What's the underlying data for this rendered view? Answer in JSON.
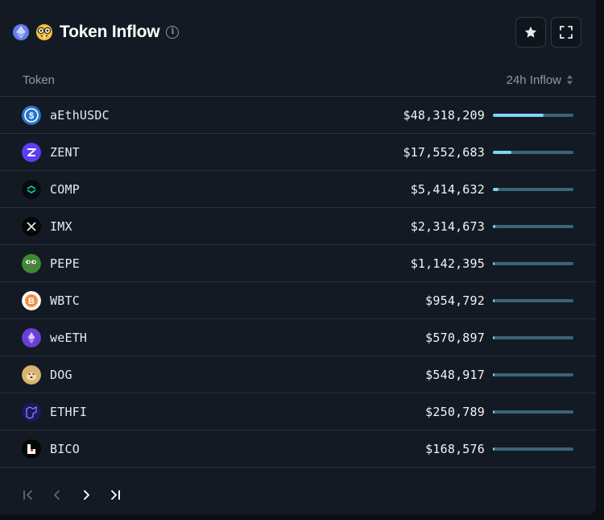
{
  "widget": {
    "title": "Token Inflow",
    "chain_icon": "ethereum-icon",
    "entity_icon": "nerd-face-emoji-icon",
    "actions": [
      "star-icon",
      "fullscreen-icon"
    ]
  },
  "columns": {
    "token": "Token",
    "inflow": "24h Inflow"
  },
  "colors": {
    "bar_track": "#3a6478",
    "bar_fill": "#7fd3f7",
    "background": "#131a23"
  },
  "rows": [
    {
      "name": "aEthUSDC",
      "value": "$48,318,209",
      "share": 0.63,
      "icon": "usdc-icon",
      "icon_bg": "#2775ca"
    },
    {
      "name": "ZENT",
      "value": "$17,552,683",
      "share": 0.23,
      "icon": "zent-icon",
      "icon_bg": "#5b3df5"
    },
    {
      "name": "COMP",
      "value": "$5,414,632",
      "share": 0.07,
      "icon": "comp-icon",
      "icon_bg": "#070a0e"
    },
    {
      "name": "IMX",
      "value": "$2,314,673",
      "share": 0.03,
      "icon": "imx-icon",
      "icon_bg": "#050607"
    },
    {
      "name": "PEPE",
      "value": "$1,142,395",
      "share": 0.015,
      "icon": "pepe-icon",
      "icon_bg": "#3d8a35"
    },
    {
      "name": "WBTC",
      "value": "$954,792",
      "share": 0.012,
      "icon": "wbtc-icon",
      "icon_bg": "#ffffff"
    },
    {
      "name": "weETH",
      "value": "$570,897",
      "share": 0.007,
      "icon": "weeth-icon",
      "icon_bg": "#6b3fd6"
    },
    {
      "name": "DOG",
      "value": "$548,917",
      "share": 0.007,
      "icon": "dog-icon",
      "icon_bg": "#d6b56f"
    },
    {
      "name": "ETHFI",
      "value": "$250,789",
      "share": 0.003,
      "icon": "ethfi-icon",
      "icon_bg": "#1a1a5e"
    },
    {
      "name": "BICO",
      "value": "$168,576",
      "share": 0.002,
      "icon": "bico-icon",
      "icon_bg": "#050505"
    }
  ],
  "pagination": [
    "first-page-icon",
    "prev-page-icon",
    "next-page-icon",
    "last-page-icon"
  ]
}
